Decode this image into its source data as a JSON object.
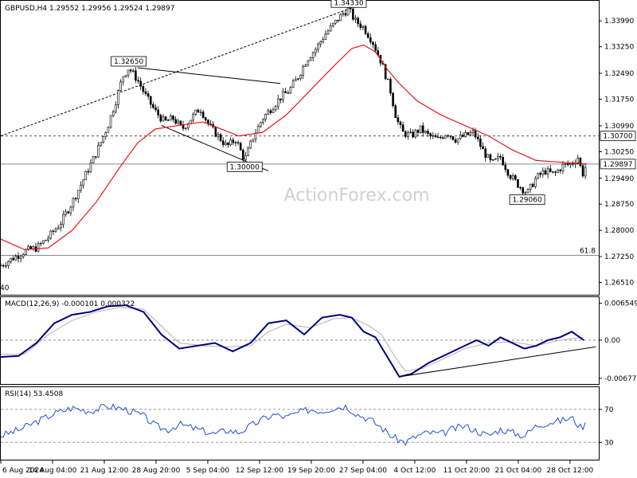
{
  "watermark": "ActionForex.com",
  "chart_data": {
    "type": "candlestick",
    "title": "GBPUSD,H4  1.29552 1.29956 1.29524 1.29897",
    "symbol": "GBPUSD",
    "timeframe": "H4",
    "ohlc_last": [
      1.29552,
      1.29956,
      1.29524,
      1.29897
    ],
    "y_ticks": [
      1.3399,
      1.3325,
      1.3249,
      1.3175,
      1.3099,
      1.3025,
      1.2949,
      1.2875,
      1.28,
      1.2725,
      1.2651
    ],
    "y_tick_labels": [
      "1.33990",
      "1.33250",
      "1.32490",
      "1.31750",
      "1.30990",
      "1.30250",
      "1.29490",
      "1.28750",
      "1.28000",
      "1.27250",
      "1.26510"
    ],
    "ylim": [
      1.2625,
      1.3445
    ],
    "x_tick_labels": [
      "6 Aug 2024",
      "14 Aug 04:00",
      "21 Aug 12:00",
      "28 Aug 20:00",
      "5 Sep 04:00",
      "12 Sep 12:00",
      "19 Sep 20:00",
      "27 Sep 04:00",
      "4 Oct 12:00",
      "11 Oct 20:00",
      "21 Oct 04:00",
      "28 Oct 12:00"
    ],
    "xlim": [
      0,
      100
    ],
    "x_tick_positions": [
      0,
      8.7,
      17.4,
      26.1,
      34.8,
      43.5,
      52.2,
      60.9,
      69.6,
      78.3,
      87.0,
      95.7
    ],
    "price_path": [
      [
        0,
        1.27
      ],
      [
        2,
        1.272
      ],
      [
        4,
        1.274
      ],
      [
        6,
        1.275
      ],
      [
        8,
        1.278
      ],
      [
        10,
        1.282
      ],
      [
        12,
        1.288
      ],
      [
        14,
        1.295
      ],
      [
        16,
        1.302
      ],
      [
        18,
        1.31
      ],
      [
        19.5,
        1.318
      ],
      [
        20.5,
        1.324
      ],
      [
        21.5,
        1.3265
      ],
      [
        23,
        1.323
      ],
      [
        24.5,
        1.318
      ],
      [
        26,
        1.314
      ],
      [
        27.5,
        1.311
      ],
      [
        29,
        1.312
      ],
      [
        30.5,
        1.309
      ],
      [
        32,
        1.312
      ],
      [
        33.5,
        1.315
      ],
      [
        35,
        1.31
      ],
      [
        36.5,
        1.307
      ],
      [
        38,
        1.304
      ],
      [
        39.5,
        1.306
      ],
      [
        41,
        1.3
      ],
      [
        42.5,
        1.307
      ],
      [
        44,
        1.312
      ],
      [
        45.5,
        1.315
      ],
      [
        47,
        1.318
      ],
      [
        48.5,
        1.32
      ],
      [
        50,
        1.324
      ],
      [
        51.5,
        1.329
      ],
      [
        53,
        1.332
      ],
      [
        54.5,
        1.336
      ],
      [
        56,
        1.339
      ],
      [
        57.5,
        1.342
      ],
      [
        58.5,
        1.3433
      ],
      [
        59.5,
        1.34
      ],
      [
        61,
        1.338
      ],
      [
        62.5,
        1.334
      ],
      [
        64,
        1.328
      ],
      [
        65.5,
        1.32
      ],
      [
        66.5,
        1.312
      ],
      [
        67.5,
        1.308
      ],
      [
        69,
        1.307
      ],
      [
        70.5,
        1.309
      ],
      [
        72,
        1.307
      ],
      [
        73.5,
        1.306
      ],
      [
        75,
        1.308
      ],
      [
        76.5,
        1.306
      ],
      [
        78,
        1.307
      ],
      [
        79.5,
        1.308
      ],
      [
        81,
        1.303
      ],
      [
        82.5,
        1.299
      ],
      [
        84,
        1.301
      ],
      [
        85.5,
        1.296
      ],
      [
        87,
        1.293
      ],
      [
        88.5,
        1.2906
      ],
      [
        90,
        1.295
      ],
      [
        91.5,
        1.297
      ],
      [
        93,
        1.296
      ],
      [
        94.5,
        1.2985
      ],
      [
        96,
        1.299
      ],
      [
        97,
        1.301
      ],
      [
        97.8,
        1.296
      ],
      [
        98.5,
        1.299
      ]
    ],
    "ma_path": [
      [
        0,
        1.2775
      ],
      [
        4,
        1.2745
      ],
      [
        8,
        1.275
      ],
      [
        12,
        1.28
      ],
      [
        16,
        1.288
      ],
      [
        20,
        1.298
      ],
      [
        23,
        1.305
      ],
      [
        26,
        1.309
      ],
      [
        30,
        1.31
      ],
      [
        34,
        1.311
      ],
      [
        37,
        1.309
      ],
      [
        40,
        1.307
      ],
      [
        44,
        1.308
      ],
      [
        48,
        1.313
      ],
      [
        52,
        1.32
      ],
      [
        56,
        1.327
      ],
      [
        59,
        1.332
      ],
      [
        61,
        1.333
      ],
      [
        63,
        1.331
      ],
      [
        65,
        1.326
      ],
      [
        67,
        1.322
      ],
      [
        70,
        1.317
      ],
      [
        74,
        1.313
      ],
      [
        78,
        1.31
      ],
      [
        82,
        1.307
      ],
      [
        86,
        1.303
      ],
      [
        90,
        1.3
      ],
      [
        94,
        1.2995
      ],
      [
        98.5,
        1.299
      ]
    ],
    "annotations": [
      {
        "label": "1.34330",
        "x": 58.5,
        "y": 1.3433
      },
      {
        "label": "1.32650",
        "x": 21.5,
        "y": 1.3265
      },
      {
        "label": "1.30000",
        "x": 41,
        "y": 1.3
      },
      {
        "label": "1.29060",
        "x": 88.5,
        "y": 1.2906
      }
    ],
    "right_labels": [
      {
        "label": "1.30700",
        "y": 1.307
      },
      {
        "label": "1.29897",
        "y": 1.29897
      }
    ],
    "hlines": [
      {
        "y": 1.307,
        "style": "dashed"
      },
      {
        "y": 1.29897,
        "style": "solid"
      },
      {
        "y": 1.27285,
        "style": "solid",
        "label": "61.8"
      }
    ],
    "trendlines": [
      {
        "from": [
          0,
          1.307
        ],
        "to": [
          58.5,
          1.3433
        ],
        "style": "dotted"
      },
      {
        "from": [
          23,
          1.3265
        ],
        "to": [
          47,
          1.322
        ],
        "style": "solid"
      },
      {
        "from": [
          27,
          1.31
        ],
        "to": [
          45,
          1.297
        ],
        "style": "solid"
      }
    ],
    "left_edge_label": "40",
    "macd": {
      "title": "MACD(12,26,9) -0.000101 0.000322",
      "y_ticks": [
        0.006549,
        0.0,
        -0.006778
      ],
      "y_tick_labels": [
        "0.006549",
        "0.00",
        "-0.006778"
      ],
      "ylim": [
        -0.0075,
        0.0072
      ],
      "macd_path": [
        [
          0,
          -0.003
        ],
        [
          3,
          -0.0028
        ],
        [
          6,
          -0.0005
        ],
        [
          9,
          0.003
        ],
        [
          12,
          0.0045
        ],
        [
          15,
          0.005
        ],
        [
          18,
          0.006
        ],
        [
          21,
          0.0062
        ],
        [
          24,
          0.005
        ],
        [
          27,
          0.001
        ],
        [
          30,
          -0.0015
        ],
        [
          33,
          -0.001
        ],
        [
          36,
          -0.0005
        ],
        [
          39,
          -0.002
        ],
        [
          42,
          -0.0005
        ],
        [
          45,
          0.003
        ],
        [
          48,
          0.0035
        ],
        [
          51,
          0.001
        ],
        [
          54,
          0.004
        ],
        [
          57,
          0.0045
        ],
        [
          59,
          0.004
        ],
        [
          61,
          0.0015
        ],
        [
          63,
          0.0005
        ],
        [
          65,
          -0.003
        ],
        [
          67,
          -0.0065
        ],
        [
          69,
          -0.006
        ],
        [
          72,
          -0.004
        ],
        [
          75,
          -0.0025
        ],
        [
          78,
          -0.001
        ],
        [
          80,
          0.0
        ],
        [
          82,
          -0.001
        ],
        [
          84,
          0.0005
        ],
        [
          86,
          -0.0005
        ],
        [
          88,
          -0.0015
        ],
        [
          90,
          -0.001
        ],
        [
          92,
          0.0
        ],
        [
          94,
          0.0005
        ],
        [
          96,
          0.0015
        ],
        [
          98,
          0.0
        ]
      ],
      "signal_path": [
        [
          0,
          -0.0025
        ],
        [
          4,
          -0.0025
        ],
        [
          8,
          0.001
        ],
        [
          12,
          0.0035
        ],
        [
          16,
          0.005
        ],
        [
          20,
          0.0058
        ],
        [
          24,
          0.0055
        ],
        [
          27,
          0.0025
        ],
        [
          30,
          -0.0005
        ],
        [
          34,
          -0.001
        ],
        [
          38,
          -0.0012
        ],
        [
          42,
          -0.001
        ],
        [
          45,
          0.0015
        ],
        [
          48,
          0.0028
        ],
        [
          52,
          0.0022
        ],
        [
          56,
          0.0038
        ],
        [
          59,
          0.004
        ],
        [
          62,
          0.0025
        ],
        [
          64,
          0.001
        ],
        [
          66,
          -0.0025
        ],
        [
          68,
          -0.0055
        ],
        [
          71,
          -0.005
        ],
        [
          75,
          -0.003
        ],
        [
          78,
          -0.0015
        ],
        [
          82,
          -0.0005
        ],
        [
          86,
          -0.0003
        ],
        [
          90,
          -0.001
        ],
        [
          94,
          0.0
        ],
        [
          98,
          0.0005
        ]
      ],
      "trendline": {
        "from": [
          67,
          -0.0065
        ],
        "to": [
          100,
          -0.0012
        ]
      }
    },
    "rsi": {
      "title": "RSI(14) 53.4508",
      "y_ticks": [
        70,
        30
      ],
      "y_tick_labels": [
        "70",
        "30"
      ],
      "ylim": [
        10,
        95
      ],
      "rsi_path": [
        [
          0,
          38
        ],
        [
          3,
          45
        ],
        [
          6,
          55
        ],
        [
          9,
          65
        ],
        [
          12,
          72
        ],
        [
          15,
          68
        ],
        [
          18,
          74
        ],
        [
          21,
          70
        ],
        [
          24,
          62
        ],
        [
          26,
          50
        ],
        [
          28,
          45
        ],
        [
          30,
          52
        ],
        [
          32,
          48
        ],
        [
          34,
          44
        ],
        [
          36,
          40
        ],
        [
          38,
          45
        ],
        [
          40,
          42
        ],
        [
          42,
          50
        ],
        [
          44,
          58
        ],
        [
          46,
          64
        ],
        [
          48,
          60
        ],
        [
          50,
          66
        ],
        [
          52,
          70
        ],
        [
          54,
          68
        ],
        [
          56,
          72
        ],
        [
          58,
          74
        ],
        [
          60,
          64
        ],
        [
          62,
          58
        ],
        [
          64,
          48
        ],
        [
          66,
          36
        ],
        [
          68,
          30
        ],
        [
          70,
          38
        ],
        [
          72,
          42
        ],
        [
          74,
          40
        ],
        [
          76,
          46
        ],
        [
          78,
          50
        ],
        [
          80,
          44
        ],
        [
          82,
          38
        ],
        [
          84,
          46
        ],
        [
          86,
          42
        ],
        [
          88,
          38
        ],
        [
          90,
          50
        ],
        [
          92,
          54
        ],
        [
          94,
          56
        ],
        [
          96,
          60
        ],
        [
          97.5,
          48
        ],
        [
          98.5,
          53
        ]
      ]
    }
  }
}
